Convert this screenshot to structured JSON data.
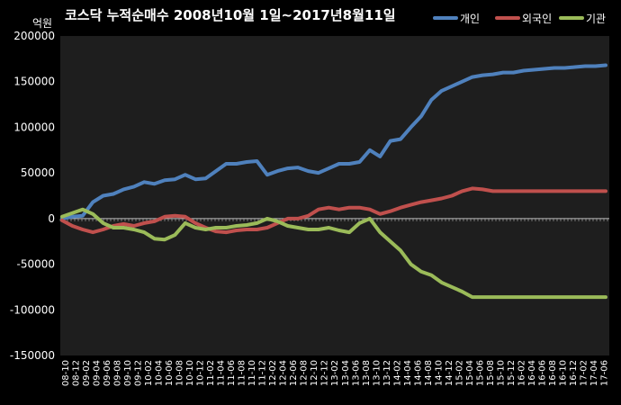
{
  "chart_data": {
    "type": "line",
    "title": "코스닥 누적순매수 2008년10월 1일~2017년8월11일",
    "unit_label": "억원",
    "legend_position": "top-right",
    "grid": false,
    "ylim": [
      -150000,
      200000
    ],
    "y_ticks": [
      "200000",
      "150000",
      "100000",
      "50000",
      "0",
      "-50000",
      "-100000",
      "-150000"
    ],
    "x_ticks": [
      "08-10",
      "08-12",
      "09-02",
      "09-04",
      "09-06",
      "09-08",
      "09-10",
      "09-12",
      "10-02",
      "10-04",
      "10-06",
      "10-08",
      "10-10",
      "10-12",
      "11-02",
      "11-04",
      "11-06",
      "11-08",
      "11-10",
      "11-12",
      "12-02",
      "12-04",
      "12-06",
      "12-08",
      "12-10",
      "12-12",
      "13-02",
      "13-04",
      "13-06",
      "13-08",
      "13-10",
      "13-12",
      "14-02",
      "14-04",
      "14-06",
      "14-08",
      "14-10",
      "14-12",
      "15-02",
      "15-04",
      "15-06",
      "15-08",
      "15-10",
      "15-12",
      "16-02",
      "16-04",
      "16-06",
      "16-08",
      "16-10",
      "16-12",
      "17-02",
      "17-04",
      "17-06"
    ],
    "x": [
      "08-10",
      "08-12",
      "09-02",
      "09-04",
      "09-06",
      "09-08",
      "09-10",
      "09-12",
      "10-02",
      "10-04",
      "10-06",
      "10-08",
      "10-10",
      "10-12",
      "11-02",
      "11-04",
      "11-06",
      "11-08",
      "11-10",
      "11-12",
      "12-02",
      "12-04",
      "12-06",
      "12-08",
      "12-10",
      "12-12",
      "13-02",
      "13-04",
      "13-06",
      "13-08",
      "13-10",
      "13-12",
      "14-02",
      "14-04",
      "14-06",
      "14-08",
      "14-10",
      "14-12",
      "15-02",
      "15-04",
      "15-06",
      "15-08",
      "15-10",
      "15-12",
      "16-02",
      "16-04",
      "16-06",
      "16-08",
      "16-10",
      "16-12",
      "17-02",
      "17-04",
      "17-06",
      "17-08"
    ],
    "series": [
      {
        "name": "개인",
        "color": "#4f81bd",
        "values": [
          0,
          2000,
          3000,
          18000,
          25000,
          27000,
          32000,
          35000,
          40000,
          38000,
          42000,
          43000,
          48000,
          43000,
          44000,
          52000,
          60000,
          60000,
          62000,
          63000,
          48000,
          52000,
          55000,
          56000,
          52000,
          50000,
          55000,
          60000,
          60000,
          62000,
          75000,
          68000,
          85000,
          87000,
          100000,
          112000,
          130000,
          140000,
          145000,
          150000,
          155000,
          157000,
          158000,
          160000,
          160000,
          162000,
          163000,
          164000,
          165000,
          165000,
          166000,
          167000,
          167000,
          168000
        ]
      },
      {
        "name": "외국인",
        "color": "#c0504d",
        "values": [
          -2000,
          -8000,
          -12000,
          -15000,
          -12000,
          -8000,
          -6000,
          -8000,
          -5000,
          -3000,
          2000,
          3000,
          2000,
          -5000,
          -10000,
          -14000,
          -15000,
          -13000,
          -12000,
          -12000,
          -10000,
          -5000,
          0,
          0,
          3000,
          10000,
          12000,
          10000,
          12000,
          12000,
          10000,
          5000,
          8000,
          12000,
          15000,
          18000,
          20000,
          22000,
          25000,
          30000,
          33000,
          32000,
          30000,
          30000,
          30000,
          30000,
          30000,
          30000,
          30000,
          30000,
          30000,
          30000,
          30000,
          30000
        ]
      },
      {
        "name": "기관",
        "color": "#9bbb59",
        "values": [
          2000,
          6000,
          10000,
          5000,
          -5000,
          -10000,
          -10000,
          -12000,
          -15000,
          -22000,
          -23000,
          -18000,
          -5000,
          -10000,
          -12000,
          -10000,
          -10000,
          -8000,
          -7000,
          -5000,
          0,
          -3000,
          -8000,
          -10000,
          -12000,
          -12000,
          -10000,
          -13000,
          -15000,
          -5000,
          0,
          -15000,
          -25000,
          -35000,
          -50000,
          -58000,
          -62000,
          -70000,
          -75000,
          -80000,
          -86000,
          -86000,
          -86000,
          -86000,
          -86000,
          -86000,
          -86000,
          -86000,
          -86000,
          -86000,
          -86000,
          -86000,
          -86000,
          -86000
        ]
      }
    ]
  }
}
